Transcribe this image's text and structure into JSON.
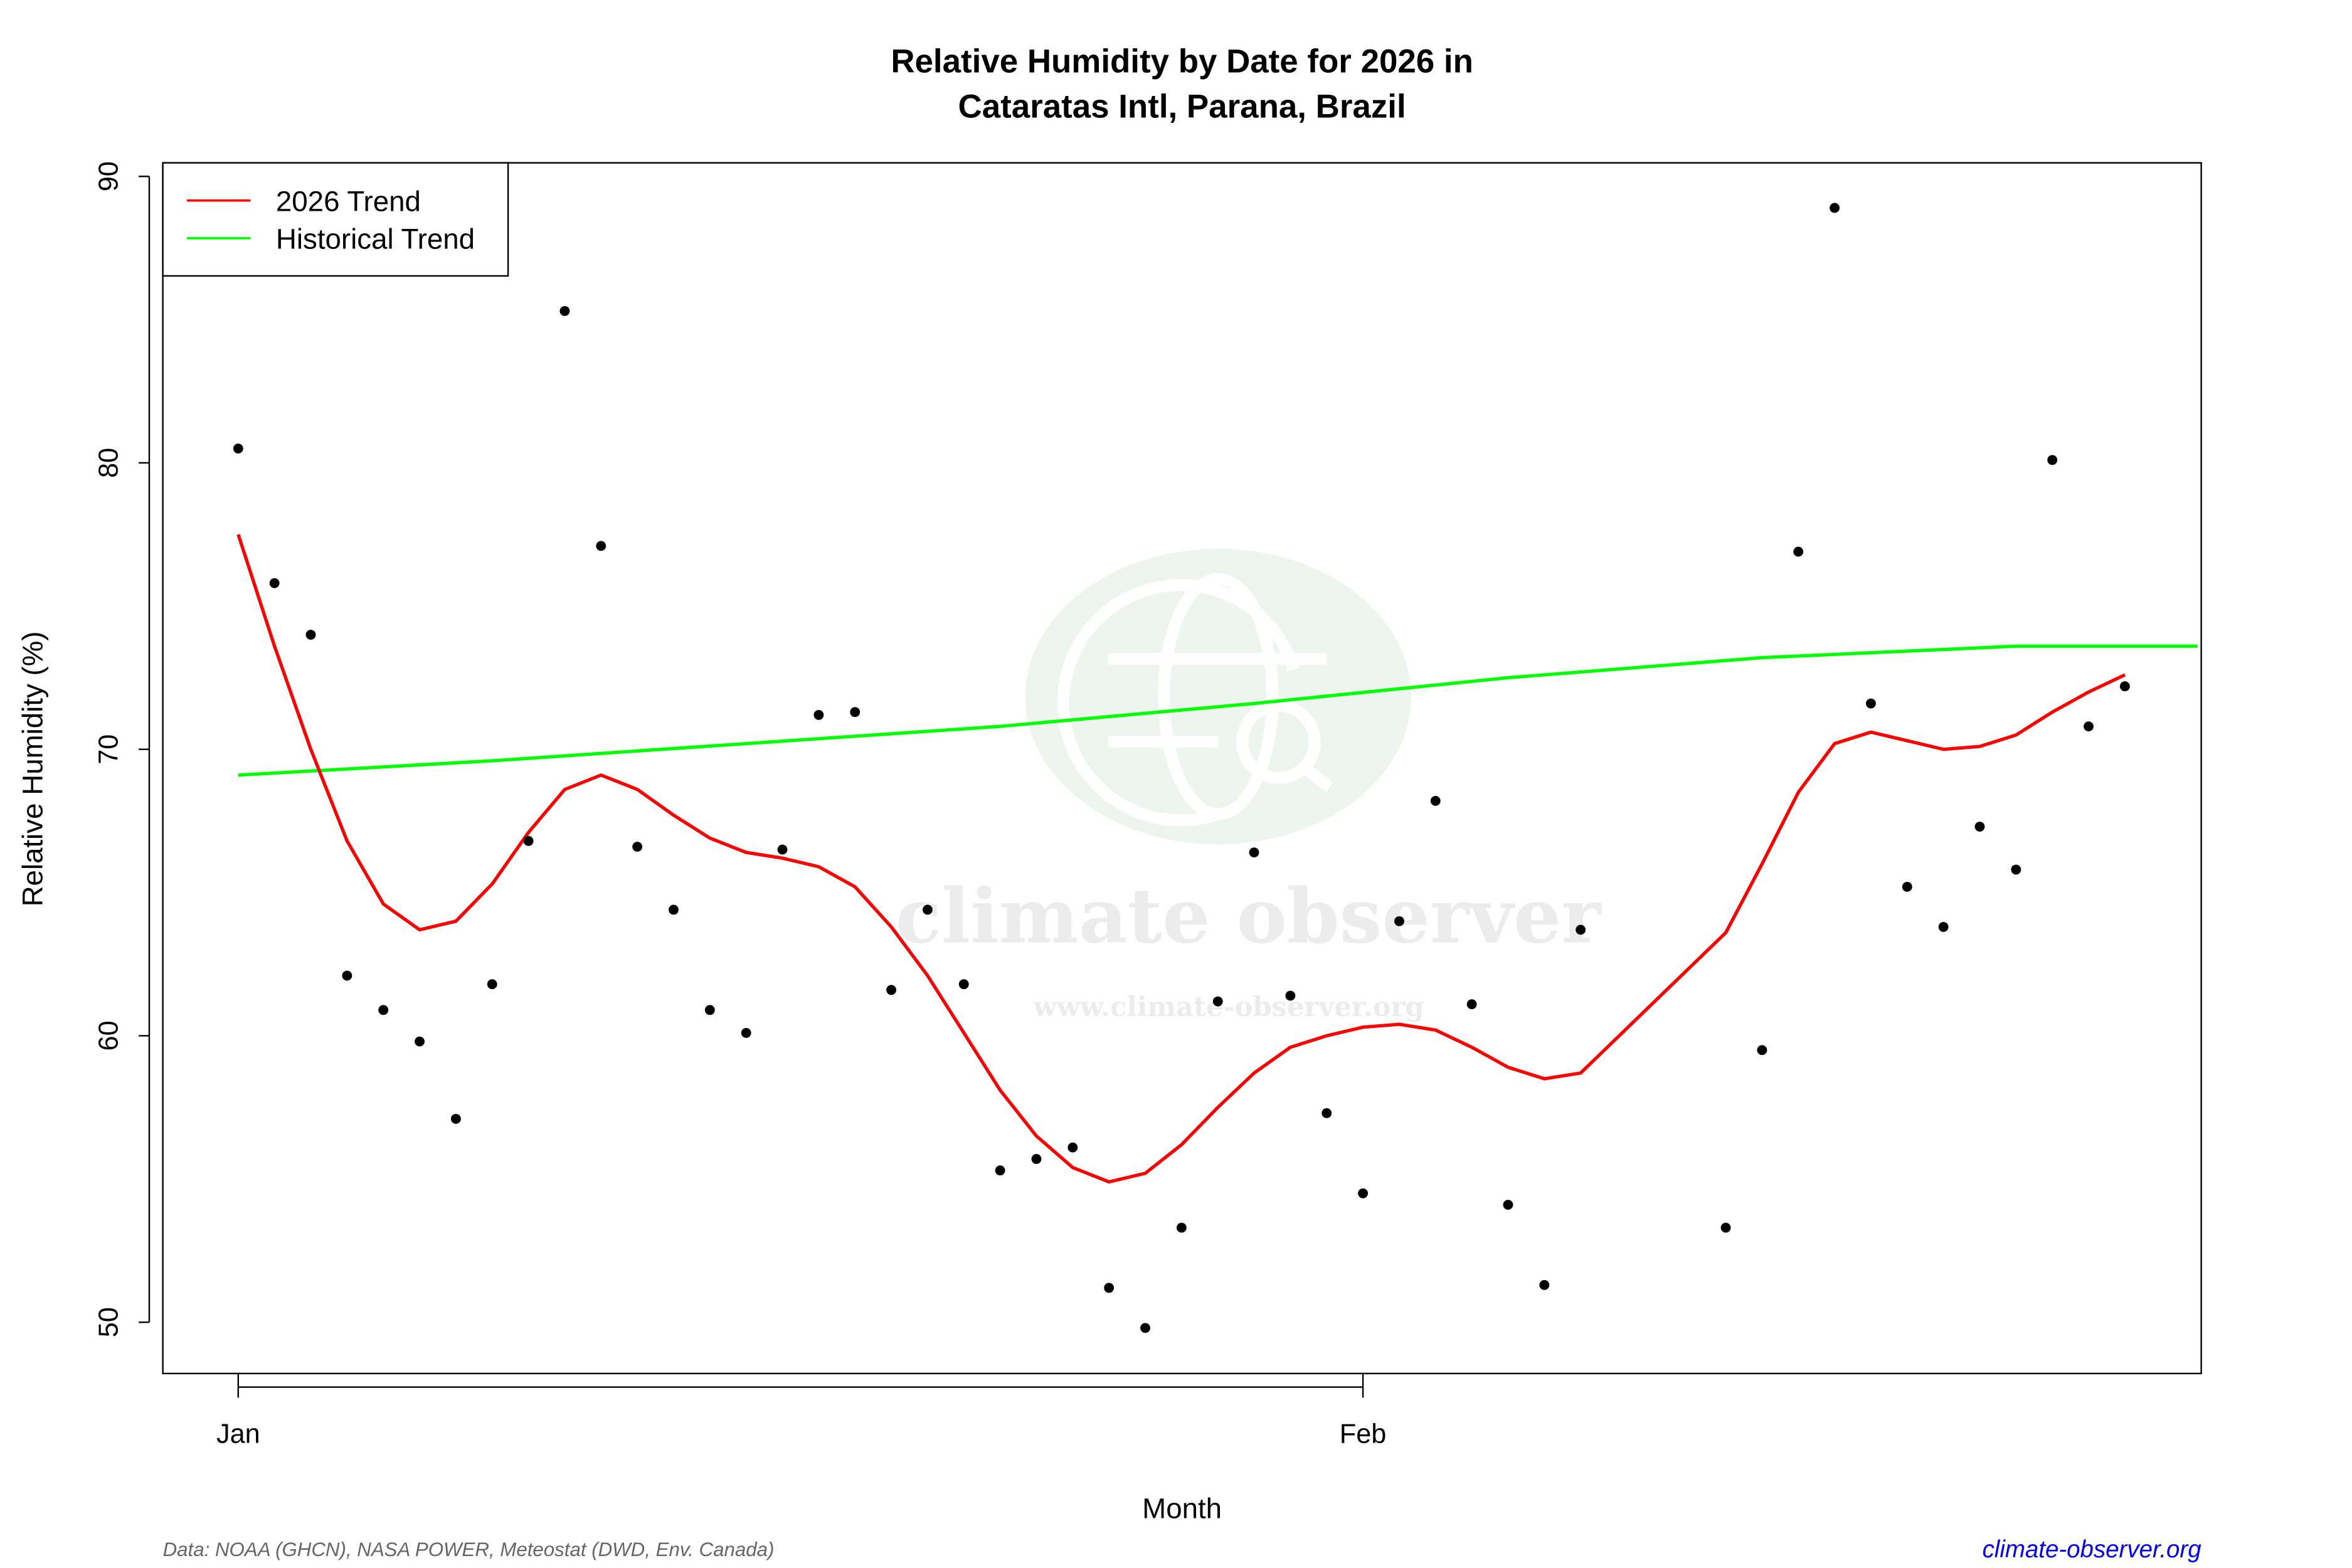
{
  "chart_data": {
    "type": "scatter",
    "title_line1": "Relative Humidity by Date for 2026 in",
    "title_line2": "Cataratas Intl, Parana, Brazil",
    "xlabel": "Month",
    "ylabel": "Relative Humidity (%)",
    "ylim": [
      48.2,
      90.5
    ],
    "xlim": [
      "2025-12-29",
      "2026-02-24"
    ],
    "yticks": [
      50,
      60,
      70,
      80,
      90
    ],
    "xticks": [
      {
        "date": "2026-01-01",
        "label": "Jan"
      },
      {
        "date": "2026-02-01",
        "label": "Feb"
      }
    ],
    "grid": false,
    "legend_placement": "top-left",
    "legend": [
      {
        "label": "2026 Trend",
        "color": "#ff0000"
      },
      {
        "label": "Historical Trend",
        "color": "#00ff00"
      }
    ],
    "points": {
      "color": "#000000",
      "data": [
        [
          "2026-01-01",
          80.5
        ],
        [
          "2026-01-02",
          75.8
        ],
        [
          "2026-01-03",
          74.0
        ],
        [
          "2026-01-04",
          62.1
        ],
        [
          "2026-01-05",
          60.9
        ],
        [
          "2026-01-06",
          59.8
        ],
        [
          "2026-01-07",
          57.1
        ],
        [
          "2026-01-08",
          61.8
        ],
        [
          "2026-01-09",
          66.8
        ],
        [
          "2026-01-10",
          85.3
        ],
        [
          "2026-01-11",
          77.1
        ],
        [
          "2026-01-12",
          66.6
        ],
        [
          "2026-01-13",
          64.4
        ],
        [
          "2026-01-14",
          60.9
        ],
        [
          "2026-01-15",
          60.1
        ],
        [
          "2026-01-16",
          66.5
        ],
        [
          "2026-01-17",
          71.2
        ],
        [
          "2026-01-18",
          71.3
        ],
        [
          "2026-01-19",
          61.6
        ],
        [
          "2026-01-20",
          64.4
        ],
        [
          "2026-01-21",
          61.8
        ],
        [
          "2026-01-22",
          55.3
        ],
        [
          "2026-01-23",
          55.7
        ],
        [
          "2026-01-24",
          56.1
        ],
        [
          "2026-01-25",
          51.2
        ],
        [
          "2026-01-26",
          49.8
        ],
        [
          "2026-01-27",
          53.3
        ],
        [
          "2026-01-28",
          61.2
        ],
        [
          "2026-01-29",
          66.4
        ],
        [
          "2026-01-30",
          61.4
        ],
        [
          "2026-01-31",
          57.3
        ],
        [
          "2026-02-01",
          54.5
        ],
        [
          "2026-02-02",
          64.0
        ],
        [
          "2026-02-03",
          68.2
        ],
        [
          "2026-02-04",
          61.1
        ],
        [
          "2026-02-05",
          54.1
        ],
        [
          "2026-02-06",
          51.3
        ],
        [
          "2026-02-07",
          63.7
        ],
        [
          "2026-02-11",
          53.3
        ],
        [
          "2026-02-12",
          59.5
        ],
        [
          "2026-02-13",
          76.9
        ],
        [
          "2026-02-14",
          88.9
        ],
        [
          "2026-02-15",
          71.6
        ],
        [
          "2026-02-16",
          65.2
        ],
        [
          "2026-02-17",
          63.8
        ],
        [
          "2026-02-18",
          67.3
        ],
        [
          "2026-02-19",
          65.8
        ],
        [
          "2026-02-20",
          80.1
        ],
        [
          "2026-02-21",
          70.8
        ],
        [
          "2026-02-22",
          72.2
        ]
      ]
    },
    "series": [
      {
        "name": "2026 Trend",
        "color": "#ff0000",
        "data": [
          [
            "2026-01-01",
            77.5
          ],
          [
            "2026-01-02",
            73.6
          ],
          [
            "2026-01-03",
            70.0
          ],
          [
            "2026-01-04",
            66.8
          ],
          [
            "2026-01-05",
            64.6
          ],
          [
            "2026-01-06",
            63.7
          ],
          [
            "2026-01-07",
            64.0
          ],
          [
            "2026-01-08",
            65.3
          ],
          [
            "2026-01-09",
            67.1
          ],
          [
            "2026-01-10",
            68.6
          ],
          [
            "2026-01-11",
            69.1
          ],
          [
            "2026-01-12",
            68.6
          ],
          [
            "2026-01-13",
            67.7
          ],
          [
            "2026-01-14",
            66.9
          ],
          [
            "2026-01-15",
            66.4
          ],
          [
            "2026-01-16",
            66.2
          ],
          [
            "2026-01-17",
            65.9
          ],
          [
            "2026-01-18",
            65.2
          ],
          [
            "2026-01-19",
            63.8
          ],
          [
            "2026-01-20",
            62.1
          ],
          [
            "2026-01-21",
            60.1
          ],
          [
            "2026-01-22",
            58.1
          ],
          [
            "2026-01-23",
            56.5
          ],
          [
            "2026-01-24",
            55.4
          ],
          [
            "2026-01-25",
            54.9
          ],
          [
            "2026-01-26",
            55.2
          ],
          [
            "2026-01-27",
            56.2
          ],
          [
            "2026-01-28",
            57.5
          ],
          [
            "2026-01-29",
            58.7
          ],
          [
            "2026-01-30",
            59.6
          ],
          [
            "2026-01-31",
            60.0
          ],
          [
            "2026-02-01",
            60.3
          ],
          [
            "2026-02-02",
            60.4
          ],
          [
            "2026-02-03",
            60.2
          ],
          [
            "2026-02-04",
            59.6
          ],
          [
            "2026-02-05",
            58.9
          ],
          [
            "2026-02-06",
            58.5
          ],
          [
            "2026-02-07",
            58.7
          ],
          [
            "2026-02-11",
            63.6
          ],
          [
            "2026-02-12",
            66.0
          ],
          [
            "2026-02-13",
            68.5
          ],
          [
            "2026-02-14",
            70.2
          ],
          [
            "2026-02-15",
            70.6
          ],
          [
            "2026-02-16",
            70.3
          ],
          [
            "2026-02-17",
            70.0
          ],
          [
            "2026-02-18",
            70.1
          ],
          [
            "2026-02-19",
            70.5
          ],
          [
            "2026-02-20",
            71.3
          ],
          [
            "2026-02-21",
            72.0
          ],
          [
            "2026-02-22",
            72.6
          ]
        ]
      },
      {
        "name": "Historical Trend",
        "color": "#00ff00",
        "data": [
          [
            "2026-01-01",
            69.1
          ],
          [
            "2026-01-08",
            69.6
          ],
          [
            "2026-01-15",
            70.2
          ],
          [
            "2026-01-22",
            70.8
          ],
          [
            "2026-01-29",
            71.6
          ],
          [
            "2026-02-05",
            72.5
          ],
          [
            "2026-02-12",
            73.2
          ],
          [
            "2026-02-19",
            73.6
          ],
          [
            "2026-02-24",
            73.6
          ]
        ]
      }
    ]
  },
  "footer": {
    "source": "Data: NOAA (GHCN), NASA POWER, Meteostat (DWD, Env. Canada)",
    "site": "climate-observer.org",
    "site_color": "#0000ff"
  },
  "watermark": {
    "name": "climate observer",
    "url": "www.climate-observer.org",
    "icon": "globe-search-icon"
  }
}
